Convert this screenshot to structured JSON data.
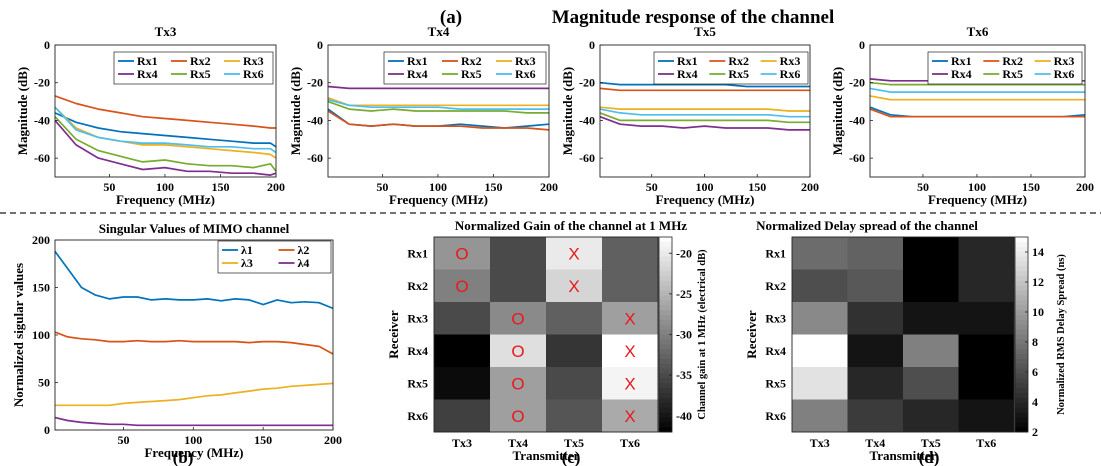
{
  "figure": {
    "main_label": "(a)",
    "main_title": "Magnitude response of the channel",
    "sub_b": "(b)",
    "sub_c": "(c)",
    "sub_d": "(d)"
  },
  "colors": {
    "Rx1": "#0072bd",
    "Rx2": "#d95319",
    "Rx3": "#edb120",
    "Rx4": "#7e2f8e",
    "Rx5": "#77ac30",
    "Rx6": "#4dbeee",
    "marker": "#e8191b",
    "divider": "#444444"
  },
  "chart_data": [
    {
      "type": "line",
      "title": "Tx3",
      "xlabel": "Frequency (MHz)",
      "ylabel": "Magnitude (dB)",
      "xlim": [
        1,
        200
      ],
      "ylim": [
        -70,
        0
      ],
      "xticks": [
        50,
        100,
        150,
        200
      ],
      "yticks": [
        0,
        -20,
        -40,
        -60
      ],
      "grid": false,
      "legend": "top-right",
      "x": [
        1,
        20,
        40,
        60,
        80,
        100,
        120,
        140,
        160,
        180,
        195,
        200
      ],
      "series": [
        {
          "name": "Rx1",
          "color": "#0072bd",
          "values": [
            -36,
            -41,
            -44,
            -46,
            -47,
            -48,
            -49,
            -50,
            -51,
            -52,
            -52,
            -54
          ]
        },
        {
          "name": "Rx2",
          "color": "#d95319",
          "values": [
            -27,
            -31,
            -34,
            -36,
            -38,
            -39,
            -40,
            -41,
            -42,
            -43,
            -44,
            -44
          ]
        },
        {
          "name": "Rx3",
          "color": "#edb120",
          "values": [
            -33,
            -44,
            -49,
            -51,
            -53,
            -53,
            -54,
            -55,
            -56,
            -57,
            -58,
            -60
          ]
        },
        {
          "name": "Rx4",
          "color": "#7e2f8e",
          "values": [
            -40,
            -53,
            -60,
            -63,
            -66,
            -65,
            -67,
            -67,
            -68,
            -68,
            -69,
            -68
          ]
        },
        {
          "name": "Rx5",
          "color": "#77ac30",
          "values": [
            -38,
            -50,
            -56,
            -59,
            -62,
            -61,
            -63,
            -64,
            -64,
            -65,
            -63,
            -67
          ]
        },
        {
          "name": "Rx6",
          "color": "#4dbeee",
          "values": [
            -33,
            -45,
            -49,
            -51,
            -52,
            -52,
            -53,
            -54,
            -54,
            -55,
            -55,
            -57
          ]
        }
      ]
    },
    {
      "type": "line",
      "title": "Tx4",
      "xlabel": "Frequency (MHz)",
      "ylabel": "Magnitude (dB)",
      "xlim": [
        1,
        200
      ],
      "ylim": [
        -70,
        0
      ],
      "xticks": [
        50,
        100,
        150,
        200
      ],
      "yticks": [
        0,
        -20,
        -40,
        -60
      ],
      "grid": false,
      "legend": "top-right",
      "x": [
        1,
        20,
        40,
        60,
        80,
        100,
        120,
        140,
        160,
        180,
        200
      ],
      "series": [
        {
          "name": "Rx1",
          "color": "#0072bd",
          "values": [
            -34,
            -42,
            -43,
            -42,
            -43,
            -43,
            -42,
            -43,
            -44,
            -43,
            -42
          ]
        },
        {
          "name": "Rx2",
          "color": "#d95319",
          "values": [
            -35,
            -42,
            -43,
            -42,
            -43,
            -43,
            -43,
            -44,
            -44,
            -44,
            -45
          ]
        },
        {
          "name": "Rx3",
          "color": "#edb120",
          "values": [
            -28,
            -32,
            -32,
            -32,
            -32,
            -32,
            -32,
            -32,
            -32,
            -32,
            -32
          ]
        },
        {
          "name": "Rx4",
          "color": "#7e2f8e",
          "values": [
            -22,
            -23,
            -23,
            -23,
            -23,
            -23,
            -23,
            -23,
            -23,
            -23,
            -23
          ]
        },
        {
          "name": "Rx5",
          "color": "#77ac30",
          "values": [
            -30,
            -34,
            -35,
            -34,
            -35,
            -35,
            -35,
            -35,
            -35,
            -36,
            -36
          ]
        },
        {
          "name": "Rx6",
          "color": "#4dbeee",
          "values": [
            -29,
            -32,
            -33,
            -33,
            -33,
            -33,
            -34,
            -34,
            -34,
            -34,
            -34
          ]
        }
      ]
    },
    {
      "type": "line",
      "title": "Tx5",
      "xlabel": "Frequency (MHz)",
      "ylabel": "Magnitude (dB)",
      "xlim": [
        1,
        200
      ],
      "ylim": [
        -70,
        0
      ],
      "xticks": [
        50,
        100,
        150,
        200
      ],
      "yticks": [
        0,
        -20,
        -40,
        -60
      ],
      "grid": false,
      "legend": "top-right",
      "x": [
        1,
        20,
        40,
        60,
        80,
        100,
        120,
        140,
        160,
        180,
        200
      ],
      "series": [
        {
          "name": "Rx1",
          "color": "#0072bd",
          "values": [
            -20,
            -21,
            -21,
            -21,
            -21,
            -21,
            -21,
            -22,
            -22,
            -22,
            -22
          ]
        },
        {
          "name": "Rx2",
          "color": "#d95319",
          "values": [
            -23,
            -24,
            -24,
            -24,
            -24,
            -24,
            -24,
            -24,
            -24,
            -24,
            -24
          ]
        },
        {
          "name": "Rx3",
          "color": "#edb120",
          "values": [
            -33,
            -34,
            -34,
            -34,
            -34,
            -34,
            -34,
            -34,
            -34,
            -35,
            -35
          ]
        },
        {
          "name": "Rx4",
          "color": "#7e2f8e",
          "values": [
            -38,
            -42,
            -43,
            -43,
            -44,
            -43,
            -44,
            -44,
            -44,
            -45,
            -45
          ]
        },
        {
          "name": "Rx5",
          "color": "#77ac30",
          "values": [
            -36,
            -40,
            -40,
            -40,
            -40,
            -40,
            -40,
            -40,
            -40,
            -41,
            -41
          ]
        },
        {
          "name": "Rx6",
          "color": "#4dbeee",
          "values": [
            -34,
            -36,
            -37,
            -37,
            -37,
            -37,
            -37,
            -37,
            -37,
            -38,
            -38
          ]
        }
      ]
    },
    {
      "type": "line",
      "title": "Tx6",
      "xlabel": "Frequency (MHz)",
      "ylabel": "Magnitude (dB)",
      "xlim": [
        1,
        200
      ],
      "ylim": [
        -70,
        0
      ],
      "xticks": [
        50,
        100,
        150,
        200
      ],
      "yticks": [
        0,
        -20,
        -40,
        -60
      ],
      "grid": false,
      "legend": "top-right",
      "x": [
        1,
        20,
        40,
        60,
        80,
        100,
        120,
        140,
        160,
        180,
        200
      ],
      "series": [
        {
          "name": "Rx1",
          "color": "#0072bd",
          "values": [
            -33,
            -37,
            -38,
            -38,
            -38,
            -38,
            -38,
            -38,
            -38,
            -38,
            -37
          ]
        },
        {
          "name": "Rx2",
          "color": "#d95319",
          "values": [
            -34,
            -38,
            -38,
            -38,
            -38,
            -38,
            -38,
            -38,
            -38,
            -38,
            -38
          ]
        },
        {
          "name": "Rx3",
          "color": "#edb120",
          "values": [
            -27,
            -29,
            -29,
            -29,
            -29,
            -29,
            -29,
            -29,
            -29,
            -29,
            -29
          ]
        },
        {
          "name": "Rx4",
          "color": "#7e2f8e",
          "values": [
            -18,
            -19,
            -19,
            -19,
            -19,
            -19,
            -19,
            -19,
            -19,
            -19,
            -19
          ]
        },
        {
          "name": "Rx5",
          "color": "#77ac30",
          "values": [
            -20,
            -21,
            -21,
            -21,
            -21,
            -21,
            -21,
            -21,
            -21,
            -21,
            -21
          ]
        },
        {
          "name": "Rx6",
          "color": "#4dbeee",
          "values": [
            -23,
            -25,
            -25,
            -25,
            -25,
            -25,
            -25,
            -25,
            -25,
            -25,
            -25
          ]
        }
      ]
    },
    {
      "type": "line",
      "title": "Singular Values of MIMO channel",
      "xlabel": "Frequency (MHz)",
      "ylabel": "Normalized sigular values",
      "xlim": [
        1,
        200
      ],
      "ylim": [
        0,
        200
      ],
      "xticks": [
        50,
        100,
        150,
        200
      ],
      "yticks": [
        0,
        50,
        100,
        150,
        200
      ],
      "grid": false,
      "legend": "top-right",
      "x": [
        1,
        10,
        20,
        30,
        40,
        50,
        60,
        70,
        80,
        90,
        100,
        110,
        120,
        130,
        140,
        150,
        160,
        170,
        180,
        190,
        200
      ],
      "series": [
        {
          "name": "λ1",
          "color": "#0072bd",
          "values": [
            188,
            170,
            150,
            142,
            138,
            140,
            140,
            137,
            138,
            137,
            137,
            138,
            136,
            138,
            137,
            132,
            137,
            134,
            135,
            134,
            128
          ]
        },
        {
          "name": "λ2",
          "color": "#d95319",
          "values": [
            103,
            98,
            96,
            95,
            93,
            93,
            94,
            93,
            93,
            94,
            93,
            93,
            93,
            93,
            92,
            93,
            93,
            92,
            90,
            88,
            80
          ]
        },
        {
          "name": "λ3",
          "color": "#edb120",
          "values": [
            26,
            26,
            26,
            26,
            26,
            28,
            29,
            30,
            31,
            32,
            34,
            36,
            37,
            39,
            41,
            43,
            44,
            46,
            47,
            48,
            49
          ]
        },
        {
          "name": "λ4",
          "color": "#7e2f8e",
          "values": [
            13,
            10,
            8,
            7,
            6,
            6,
            5,
            5,
            5,
            5,
            5,
            5,
            5,
            5,
            5,
            5,
            5,
            5,
            5,
            5,
            5
          ]
        }
      ]
    },
    {
      "type": "heatmap",
      "title": "Normalized Gain of the channel at 1 MHz",
      "xlabel": "Transmitter",
      "ylabel": "Receiver",
      "xcategories": [
        "Tx3",
        "Tx4",
        "Tx5",
        "Tx6"
      ],
      "ycategories": [
        "Rx1",
        "Rx2",
        "Rx3",
        "Rx4",
        "Rx5",
        "Rx6"
      ],
      "colorbar_label": "Channel gain at 1 MHz (electrical dB)",
      "colorbar_ticks": [
        -20,
        -25,
        -30,
        -35,
        -40
      ],
      "clim": [
        -42,
        -18
      ],
      "values": [
        [
          -28,
          -35,
          -20,
          -33
        ],
        [
          -30,
          -35,
          -22,
          -33
        ],
        [
          -35,
          -29,
          -33,
          -27
        ],
        [
          -42,
          -21,
          -37,
          -18
        ],
        [
          -41,
          -27,
          -35,
          -19
        ],
        [
          -36,
          -27,
          -34,
          -26
        ]
      ],
      "markers": [
        [
          "O",
          "",
          "X",
          ""
        ],
        [
          "O",
          "",
          "X",
          ""
        ],
        [
          "",
          "O",
          "",
          "X"
        ],
        [
          "",
          "O",
          "",
          "X"
        ],
        [
          "",
          "O",
          "",
          "X"
        ],
        [
          "",
          "O",
          "",
          "X"
        ]
      ]
    },
    {
      "type": "heatmap",
      "title": "Normalized Delay spread of the channel",
      "xlabel": "Transmitter",
      "ylabel": "Receiver",
      "xcategories": [
        "Tx3",
        "Tx4",
        "Tx5",
        "Tx6"
      ],
      "ycategories": [
        "Rx1",
        "Rx2",
        "Rx3",
        "Rx4",
        "Rx5",
        "Rx6"
      ],
      "colorbar_label": "Normalized RMS Delay Spread (ns)",
      "colorbar_ticks": [
        14,
        12,
        10,
        8,
        6,
        4,
        2
      ],
      "clim": [
        2,
        15
      ],
      "values": [
        [
          7.5,
          7,
          2,
          4
        ],
        [
          6,
          6.5,
          2,
          4
        ],
        [
          9,
          4.5,
          3,
          3
        ],
        [
          15,
          3,
          8.5,
          2
        ],
        [
          13.5,
          4,
          6,
          2
        ],
        [
          8.5,
          5,
          4,
          3
        ]
      ]
    }
  ]
}
